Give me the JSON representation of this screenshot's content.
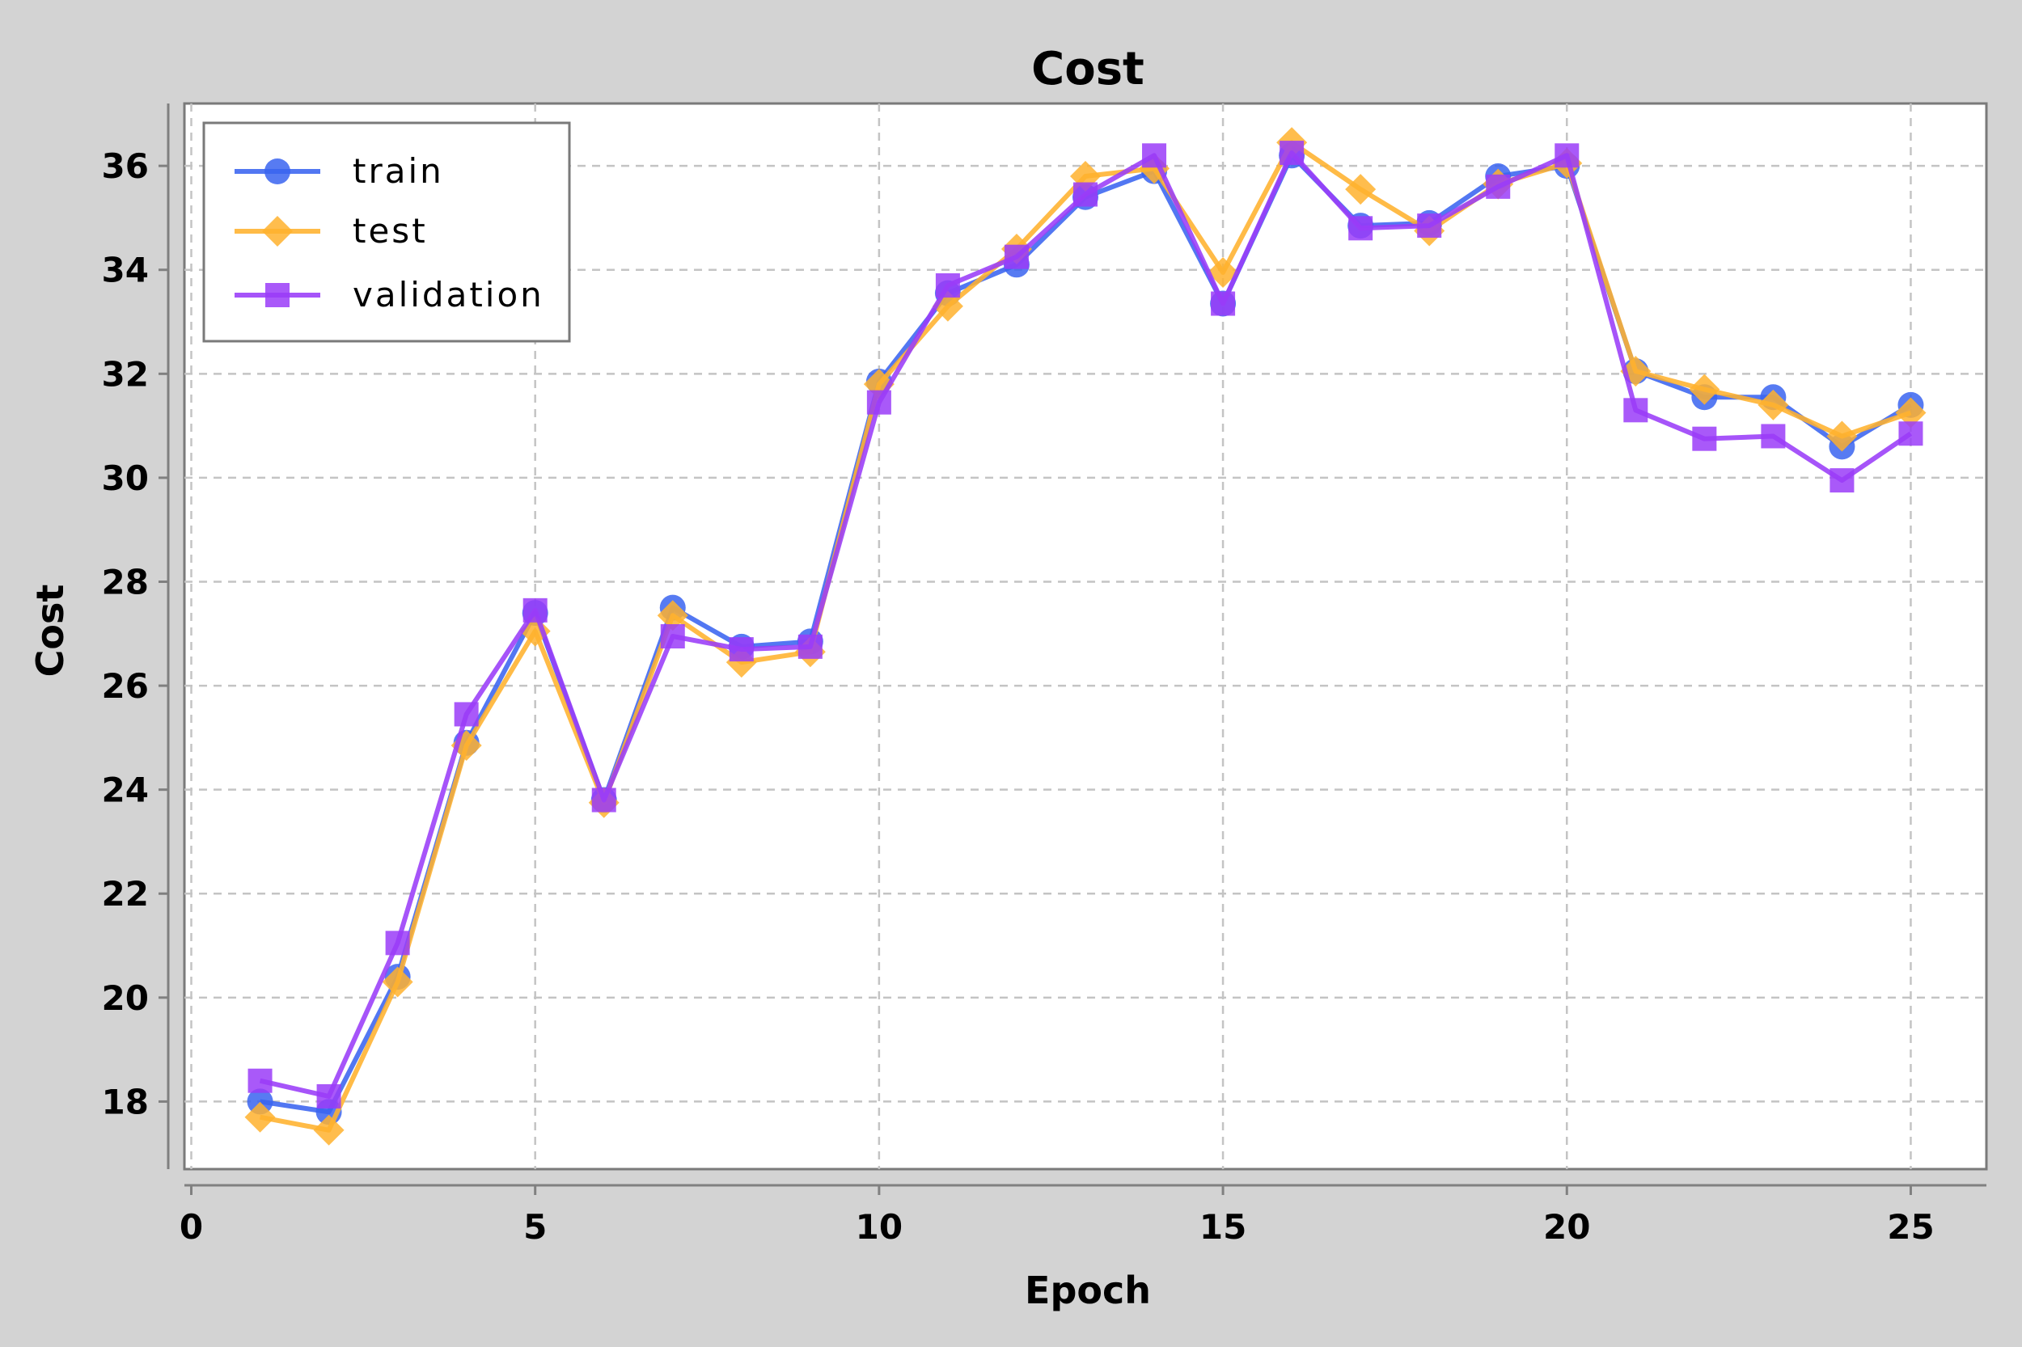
{
  "chart_data": {
    "type": "line",
    "title": "Cost",
    "xlabel": "Epoch",
    "ylabel": "Cost",
    "xlim": [
      -0.1,
      26.1
    ],
    "ylim": [
      16.7,
      37.2
    ],
    "xticks": [
      0,
      5,
      10,
      15,
      20,
      25
    ],
    "yticks": [
      18,
      20,
      22,
      24,
      26,
      28,
      30,
      32,
      34,
      36
    ],
    "grid": true,
    "legend_position": "top-left",
    "x": [
      1,
      2,
      3,
      4,
      5,
      6,
      7,
      8,
      9,
      10,
      11,
      12,
      13,
      14,
      15,
      16,
      17,
      18,
      19,
      20,
      21,
      22,
      23,
      24,
      25
    ],
    "series": [
      {
        "name": "train",
        "color": "#3a64f0",
        "marker": "circle",
        "values": [
          18.0,
          17.8,
          20.4,
          24.9,
          27.4,
          23.8,
          27.5,
          26.75,
          26.85,
          31.85,
          33.55,
          34.1,
          35.4,
          35.9,
          33.35,
          36.2,
          34.85,
          34.9,
          35.8,
          36.0,
          32.05,
          31.55,
          31.55,
          30.6,
          31.4
        ]
      },
      {
        "name": "test",
        "color": "#ffb22e",
        "marker": "diamond",
        "values": [
          17.7,
          17.45,
          20.3,
          24.85,
          27.05,
          23.75,
          27.35,
          26.45,
          26.65,
          31.8,
          33.3,
          34.4,
          35.8,
          35.95,
          33.95,
          36.45,
          35.55,
          34.75,
          35.65,
          36.05,
          32.05,
          31.7,
          31.4,
          30.8,
          31.25
        ]
      },
      {
        "name": "validation",
        "color": "#9a3cf8",
        "marker": "square",
        "values": [
          18.4,
          18.1,
          21.05,
          25.45,
          27.45,
          23.8,
          26.95,
          26.7,
          26.75,
          31.45,
          33.7,
          34.25,
          35.45,
          36.2,
          33.35,
          36.25,
          34.8,
          34.85,
          35.6,
          36.2,
          31.3,
          30.75,
          30.8,
          29.95,
          30.85
        ]
      }
    ]
  }
}
